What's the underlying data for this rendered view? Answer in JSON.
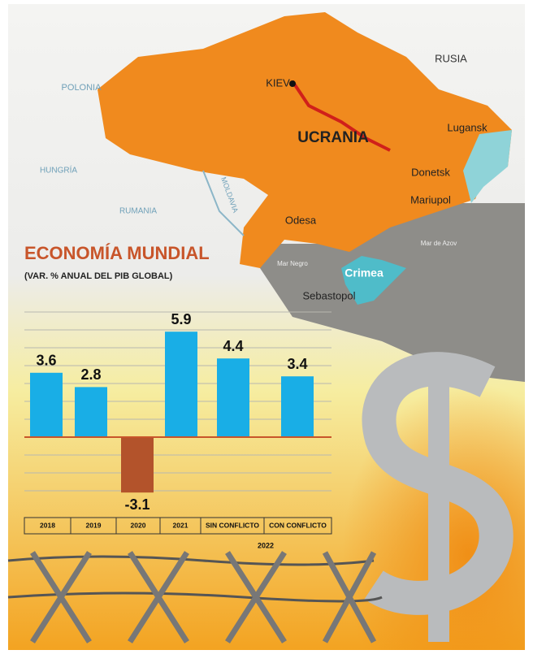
{
  "map": {
    "labels": [
      "RUSIA",
      "POLONIA",
      "KIEV",
      "UCRANIA",
      "Lugansk",
      "HUNGRÍA",
      "Donetsk",
      "MOLDAVIA",
      "Mariupol",
      "RUMANIA",
      "Odesa",
      "Mar de Azov",
      "Mar Negro",
      "Crimea",
      "Sebastopol"
    ]
  },
  "chart_data": {
    "type": "bar",
    "title": "ECONOMÍA MUNDIAL",
    "subtitle": "(VAR. % ANUAL DEL PIB GLOBAL)",
    "categories": [
      "2018",
      "2019",
      "2020",
      "2021",
      "SIN CONFLICTO",
      "CON CONFLICTO"
    ],
    "category_group": "2022",
    "values": [
      3.6,
      2.8,
      -3.1,
      5.9,
      4.4,
      3.4
    ],
    "colors": [
      "#19aee6",
      "#19aee6",
      "#b3532b",
      "#19aee6",
      "#19aee6",
      "#19aee6"
    ],
    "ylim": [
      -4,
      7
    ],
    "grid": [
      -3,
      -2,
      -1,
      1,
      2,
      3,
      4,
      5,
      6,
      7
    ]
  }
}
